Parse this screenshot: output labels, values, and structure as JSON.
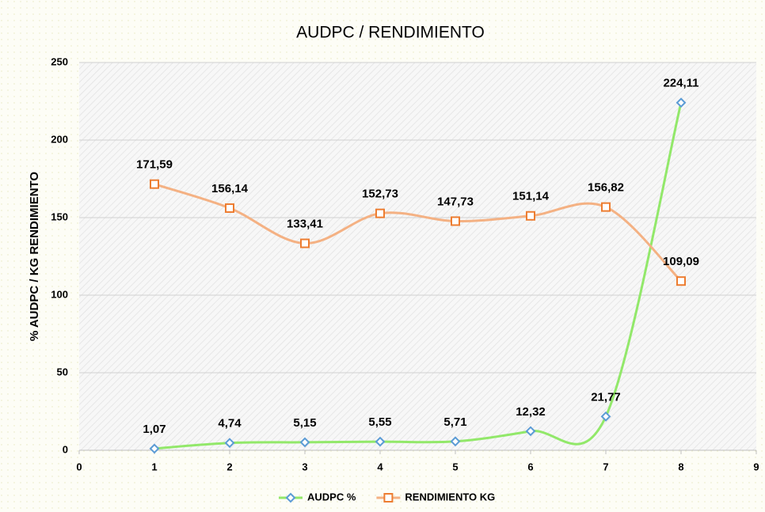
{
  "chart_data": {
    "type": "line",
    "title": "AUDPC / RENDIMIENTO",
    "y_label": "% AUDPC / KG RENDIMIENTO",
    "x": [
      1,
      2,
      3,
      4,
      5,
      6,
      7,
      8
    ],
    "series": [
      {
        "name": "AUDPC %",
        "color": "#92e86a",
        "marker_color": "#5b9bd5",
        "marker": "diamond",
        "values": [
          1.07,
          4.74,
          5.15,
          5.55,
          5.71,
          12.32,
          21.77,
          224.11
        ],
        "value_labels": [
          "1,07",
          "4,74",
          "5,15",
          "5,55",
          "5,71",
          "12,32",
          "21,77",
          "224,11"
        ]
      },
      {
        "name": "RENDIMIENTO KG",
        "color": "#f4b183",
        "marker_color": "#ed7d31",
        "marker": "square",
        "values": [
          171.59,
          156.14,
          133.41,
          152.73,
          147.73,
          151.14,
          156.82,
          109.09
        ],
        "value_labels": [
          "171,59",
          "156,14",
          "133,41",
          "152,73",
          "147,73",
          "151,14",
          "156,82",
          "109,09"
        ]
      }
    ],
    "xlim": [
      0,
      9
    ],
    "xticks": [
      0,
      1,
      2,
      3,
      4,
      5,
      6,
      7,
      8,
      9
    ],
    "ylim": [
      0,
      250
    ],
    "yticks": [
      0,
      50,
      100,
      150,
      200,
      250
    ],
    "grid": true,
    "smooth": true,
    "legend": "bottom"
  }
}
